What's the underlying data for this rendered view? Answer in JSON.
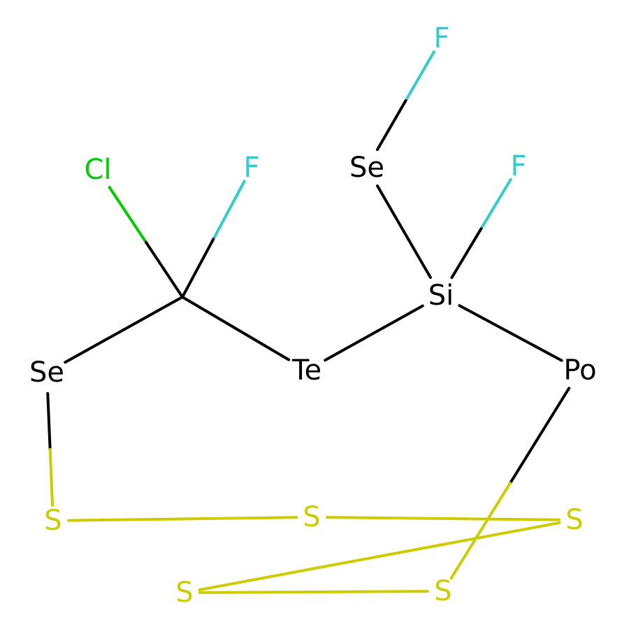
{
  "colors": {
    "carbon": "#000000",
    "fluorine": "#33CCCC",
    "chlorine": "#00CC00",
    "sulfur": "#CCCC00"
  },
  "atoms": [
    {
      "id": "F1",
      "label": "F",
      "color": "fluorine"
    },
    {
      "id": "Se1",
      "label": "Se",
      "color": "carbon"
    },
    {
      "id": "F2",
      "label": "F",
      "color": "fluorine"
    },
    {
      "id": "Cl",
      "label": "Cl",
      "color": "chlorine"
    },
    {
      "id": "F3",
      "label": "F",
      "color": "fluorine"
    },
    {
      "id": "C",
      "label": "",
      "color": "carbon"
    },
    {
      "id": "Si",
      "label": "Si",
      "color": "carbon"
    },
    {
      "id": "Se2",
      "label": "Se",
      "color": "carbon"
    },
    {
      "id": "Te",
      "label": "Te",
      "color": "carbon"
    },
    {
      "id": "Po",
      "label": "Po",
      "color": "carbon"
    },
    {
      "id": "S1",
      "label": "S",
      "color": "sulfur"
    },
    {
      "id": "S2",
      "label": "S",
      "color": "sulfur"
    },
    {
      "id": "S3",
      "label": "S",
      "color": "sulfur"
    },
    {
      "id": "S4",
      "label": "S",
      "color": "sulfur"
    },
    {
      "id": "S5",
      "label": "S",
      "color": "sulfur"
    }
  ],
  "bonds": [
    [
      "F1",
      "Se1"
    ],
    [
      "Se1",
      "Si"
    ],
    [
      "F2",
      "Si"
    ],
    [
      "Cl",
      "C"
    ],
    [
      "F3",
      "C"
    ],
    [
      "C",
      "Se2"
    ],
    [
      "C",
      "Te"
    ],
    [
      "Te",
      "Si"
    ],
    [
      "Si",
      "Po"
    ],
    [
      "Se2",
      "S1"
    ],
    [
      "Po",
      "S5"
    ],
    [
      "S1",
      "S2"
    ],
    [
      "S2",
      "S3"
    ],
    [
      "S3",
      "S4"
    ],
    [
      "S4",
      "S5"
    ]
  ]
}
